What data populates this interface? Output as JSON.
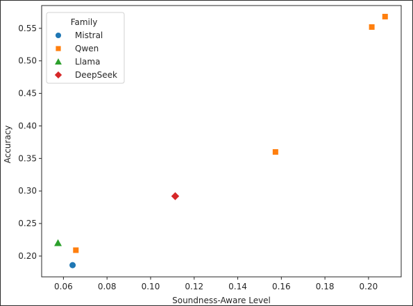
{
  "chart_data": {
    "type": "scatter",
    "xlabel": "Soundness-Aware Level",
    "ylabel": "Accuracy",
    "xlim": [
      0.05,
      0.215
    ],
    "ylim": [
      0.168,
      0.585
    ],
    "xticks": [
      0.06,
      0.08,
      0.1,
      0.12,
      0.14,
      0.16,
      0.18,
      0.2
    ],
    "xtick_labels": [
      "0.06",
      "0.08",
      "0.10",
      "0.12",
      "0.14",
      "0.16",
      "0.18",
      "0.20"
    ],
    "yticks": [
      0.2,
      0.25,
      0.3,
      0.35,
      0.4,
      0.45,
      0.5,
      0.55
    ],
    "ytick_labels": [
      "0.20",
      "0.25",
      "0.30",
      "0.35",
      "0.40",
      "0.45",
      "0.50",
      "0.55"
    ],
    "grid": false,
    "legend": {
      "title": "Family",
      "placement": "top-left"
    },
    "series": [
      {
        "name": "Mistral",
        "marker": "circle",
        "color": "#1f77b4",
        "points": [
          {
            "x": 0.0642,
            "y": 0.186
          }
        ]
      },
      {
        "name": "Qwen",
        "marker": "square",
        "color": "#ff7f0e",
        "points": [
          {
            "x": 0.0657,
            "y": 0.209
          },
          {
            "x": 0.1573,
            "y": 0.36
          },
          {
            "x": 0.2015,
            "y": 0.552
          },
          {
            "x": 0.2076,
            "y": 0.568
          }
        ]
      },
      {
        "name": "Llama",
        "marker": "triangle",
        "color": "#2ca02c",
        "points": [
          {
            "x": 0.0575,
            "y": 0.22
          }
        ]
      },
      {
        "name": "DeepSeek",
        "marker": "diamond",
        "color": "#d62728",
        "points": [
          {
            "x": 0.1113,
            "y": 0.292
          }
        ]
      }
    ]
  }
}
